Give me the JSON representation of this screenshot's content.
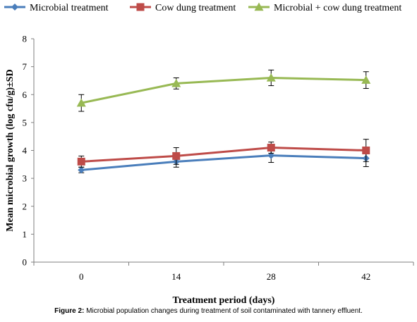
{
  "chart_data": {
    "type": "line",
    "x": [
      0,
      14,
      28,
      42
    ],
    "xlabel": "Treatment period (days)",
    "ylabel": "Mean microbial growth (log cfu/g)±SD",
    "ylim": [
      0,
      8
    ],
    "yticks": [
      0,
      1,
      2,
      3,
      4,
      5,
      6,
      7,
      8
    ],
    "xticks": [
      "0",
      "14",
      "28",
      "42"
    ],
    "legend_position": "top",
    "grid": false,
    "series": [
      {
        "name": "Microbial treatment",
        "color": "#4a7ebb",
        "marker": "diamond",
        "values": [
          3.3,
          3.6,
          3.82,
          3.72
        ],
        "errors": [
          0.1,
          0.2,
          0.25,
          0.3
        ]
      },
      {
        "name": "Cow dung treatment",
        "color": "#be4b48",
        "marker": "square",
        "values": [
          3.6,
          3.8,
          4.1,
          4.0
        ],
        "errors": [
          0.2,
          0.3,
          0.2,
          0.4
        ]
      },
      {
        "name": "Microbial + cow dung treatment",
        "color": "#98b954",
        "marker": "triangle",
        "values": [
          5.7,
          6.4,
          6.6,
          6.52
        ],
        "errors": [
          0.3,
          0.2,
          0.28,
          0.3
        ]
      }
    ]
  },
  "caption": {
    "label": "Figure 2:",
    "text": "Microbial population changes during treatment of soil contaminated with tannery effluent."
  }
}
